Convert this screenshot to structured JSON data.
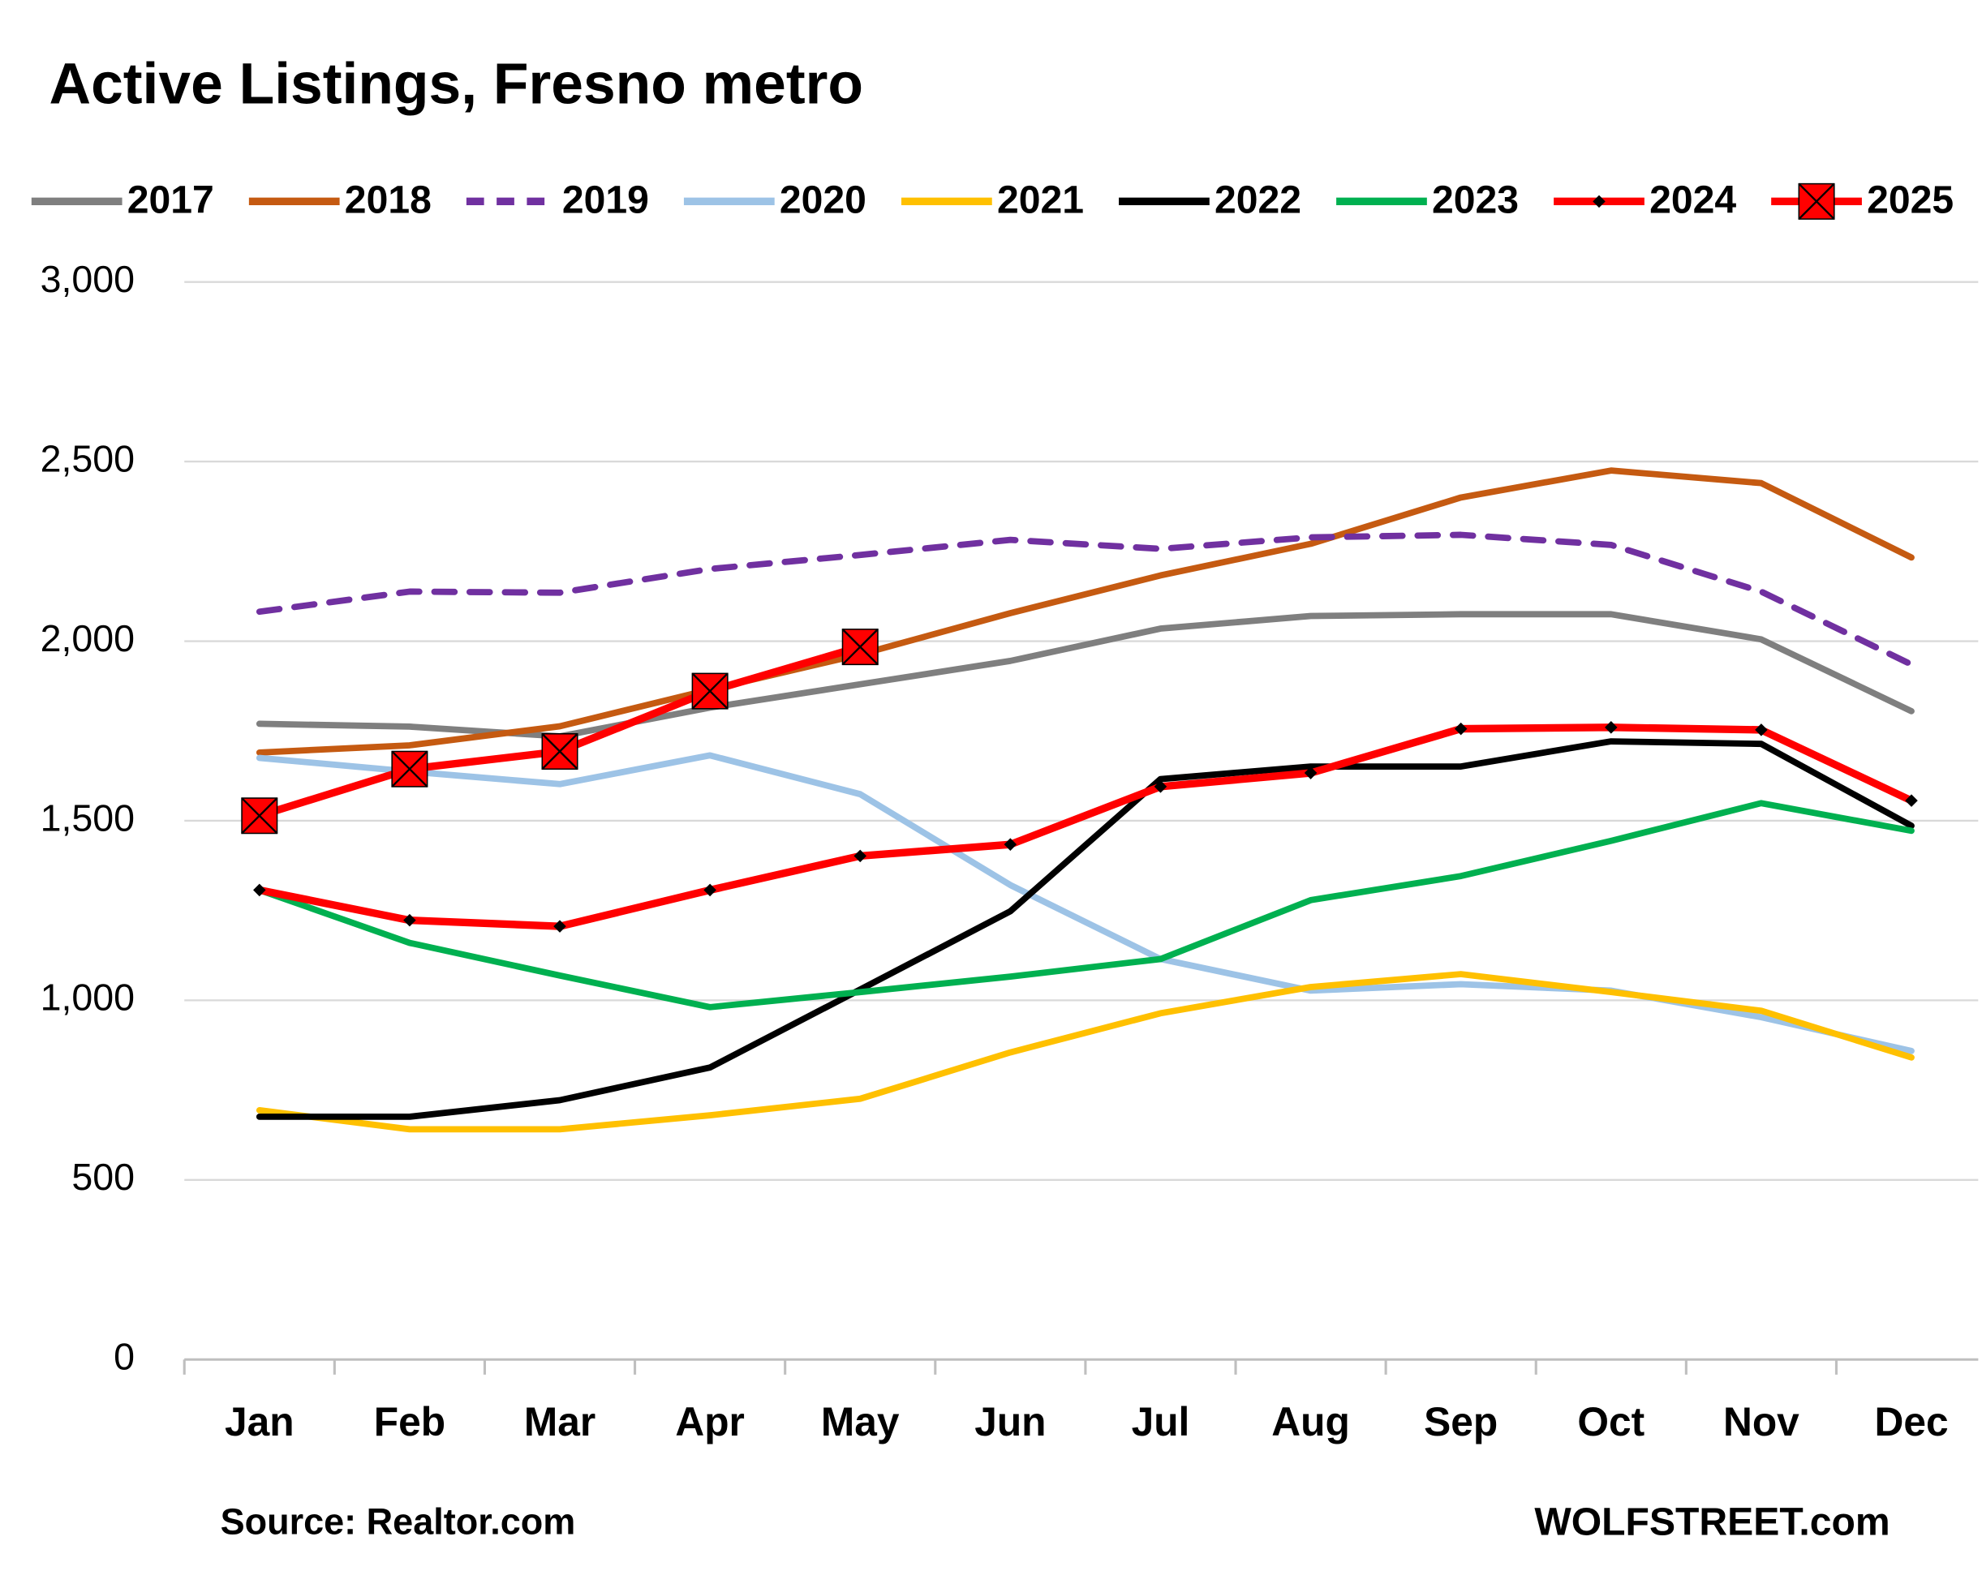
{
  "chart_data": {
    "type": "line",
    "title": "Active Listings, Fresno metro",
    "categories": [
      "Jan",
      "Feb",
      "Mar",
      "Apr",
      "May",
      "Jun",
      "Jul",
      "Aug",
      "Sep",
      "Oct",
      "Nov",
      "Dec"
    ],
    "series": [
      {
        "name": "2017",
        "color": "#7f7f7f",
        "values": [
          1770,
          1762,
          1735,
          1815,
          1880,
          1945,
          2035,
          2070,
          2075,
          2075,
          2005,
          1805
        ]
      },
      {
        "name": "2018",
        "color": "#c55a11",
        "values": [
          1690,
          1710,
          1763,
          1865,
          1963,
          2078,
          2183,
          2271,
          2400,
          2475,
          2440,
          2233
        ]
      },
      {
        "name": "2019",
        "color": "#7030a0",
        "dash": true,
        "values": [
          2082,
          2138,
          2135,
          2201,
          2240,
          2282,
          2257,
          2289,
          2296,
          2268,
          2138,
          1935
        ]
      },
      {
        "name": "2020",
        "color": "#9dc3e6",
        "values": [
          1675,
          1637,
          1602,
          1682,
          1574,
          1321,
          1115,
          1027,
          1045,
          1027,
          953,
          859
        ]
      },
      {
        "name": "2021",
        "color": "#ffc000",
        "values": [
          694,
          641,
          641,
          680,
          726,
          855,
          964,
          1037,
          1073,
          1023,
          971,
          841
        ]
      },
      {
        "name": "2022",
        "color": "#000000",
        "values": [
          676,
          676,
          722,
          813,
          1030,
          1248,
          1616,
          1651,
          1651,
          1721,
          1714,
          1486
        ]
      },
      {
        "name": "2023",
        "color": "#00b050",
        "values": [
          1307,
          1160,
          1069,
          981,
          1023,
          1066,
          1115,
          1279,
          1346,
          1444,
          1549,
          1472
        ]
      },
      {
        "name": "2024",
        "color": "#ff0000",
        "marker": "diamond",
        "values": [
          1307,
          1223,
          1206,
          1307,
          1402,
          1434,
          1595,
          1633,
          1756,
          1760,
          1753,
          1556
        ]
      },
      {
        "name": "2025",
        "color": "#ff0000",
        "marker": "x-square",
        "values": [
          1514,
          1644,
          1693,
          1861,
          1984,
          null,
          null,
          null,
          null,
          null,
          null,
          null
        ]
      }
    ],
    "ylim": [
      0,
      3000
    ],
    "yticks": [
      {
        "value": 0,
        "label": "0"
      },
      {
        "value": 500,
        "label": "500"
      },
      {
        "value": 1000,
        "label": "1,000"
      },
      {
        "value": 1500,
        "label": "1,500"
      },
      {
        "value": 2000,
        "label": "2,000"
      },
      {
        "value": 2500,
        "label": "2,500"
      },
      {
        "value": 3000,
        "label": "3,000"
      }
    ],
    "grid": true,
    "legend": "top",
    "source": "Source: Realtor.com",
    "credit": "WOLFSTREET.com"
  }
}
